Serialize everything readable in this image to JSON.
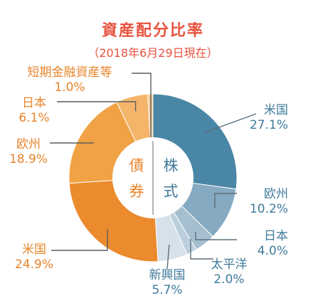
{
  "chart_data": {
    "type": "pie",
    "title": "資産配分比率",
    "subtitle": "（2018年6月29日現在）",
    "center_labels": {
      "left_line1": "債",
      "left_line2": "券",
      "right_line1": "株",
      "right_line2": "式"
    },
    "slices": [
      {
        "name": "米国",
        "value": 27.1,
        "label": "27.1%",
        "color": "#4a86a6"
      },
      {
        "name": "欧州",
        "value": 10.2,
        "label": "10.2%",
        "color": "#86aac2"
      },
      {
        "name": "日本",
        "value": 4.0,
        "label": "4.0%",
        "color": "#a5bfd0"
      },
      {
        "name": "太平洋",
        "value": 2.0,
        "label": "2.0%",
        "color": "#bccfdc"
      },
      {
        "name": "新興国",
        "value": 5.7,
        "label": "5.7%",
        "color": "#d7e1e9"
      },
      {
        "name": "米国",
        "value": 24.9,
        "label": "24.9%",
        "color": "#ec8b2e"
      },
      {
        "name": "欧州",
        "value": 18.9,
        "label": "18.9%",
        "color": "#f0a244"
      },
      {
        "name": "日本",
        "value": 6.1,
        "label": "6.1%",
        "color": "#f4b56b"
      },
      {
        "name": "短期金融資産等",
        "value": 1.0,
        "label": "1.0%",
        "color": "#f7c98f"
      }
    ],
    "colors": {
      "title": "#e8533f",
      "stock_text": "#3f7a9a",
      "bond_text": "#e8842a"
    }
  }
}
